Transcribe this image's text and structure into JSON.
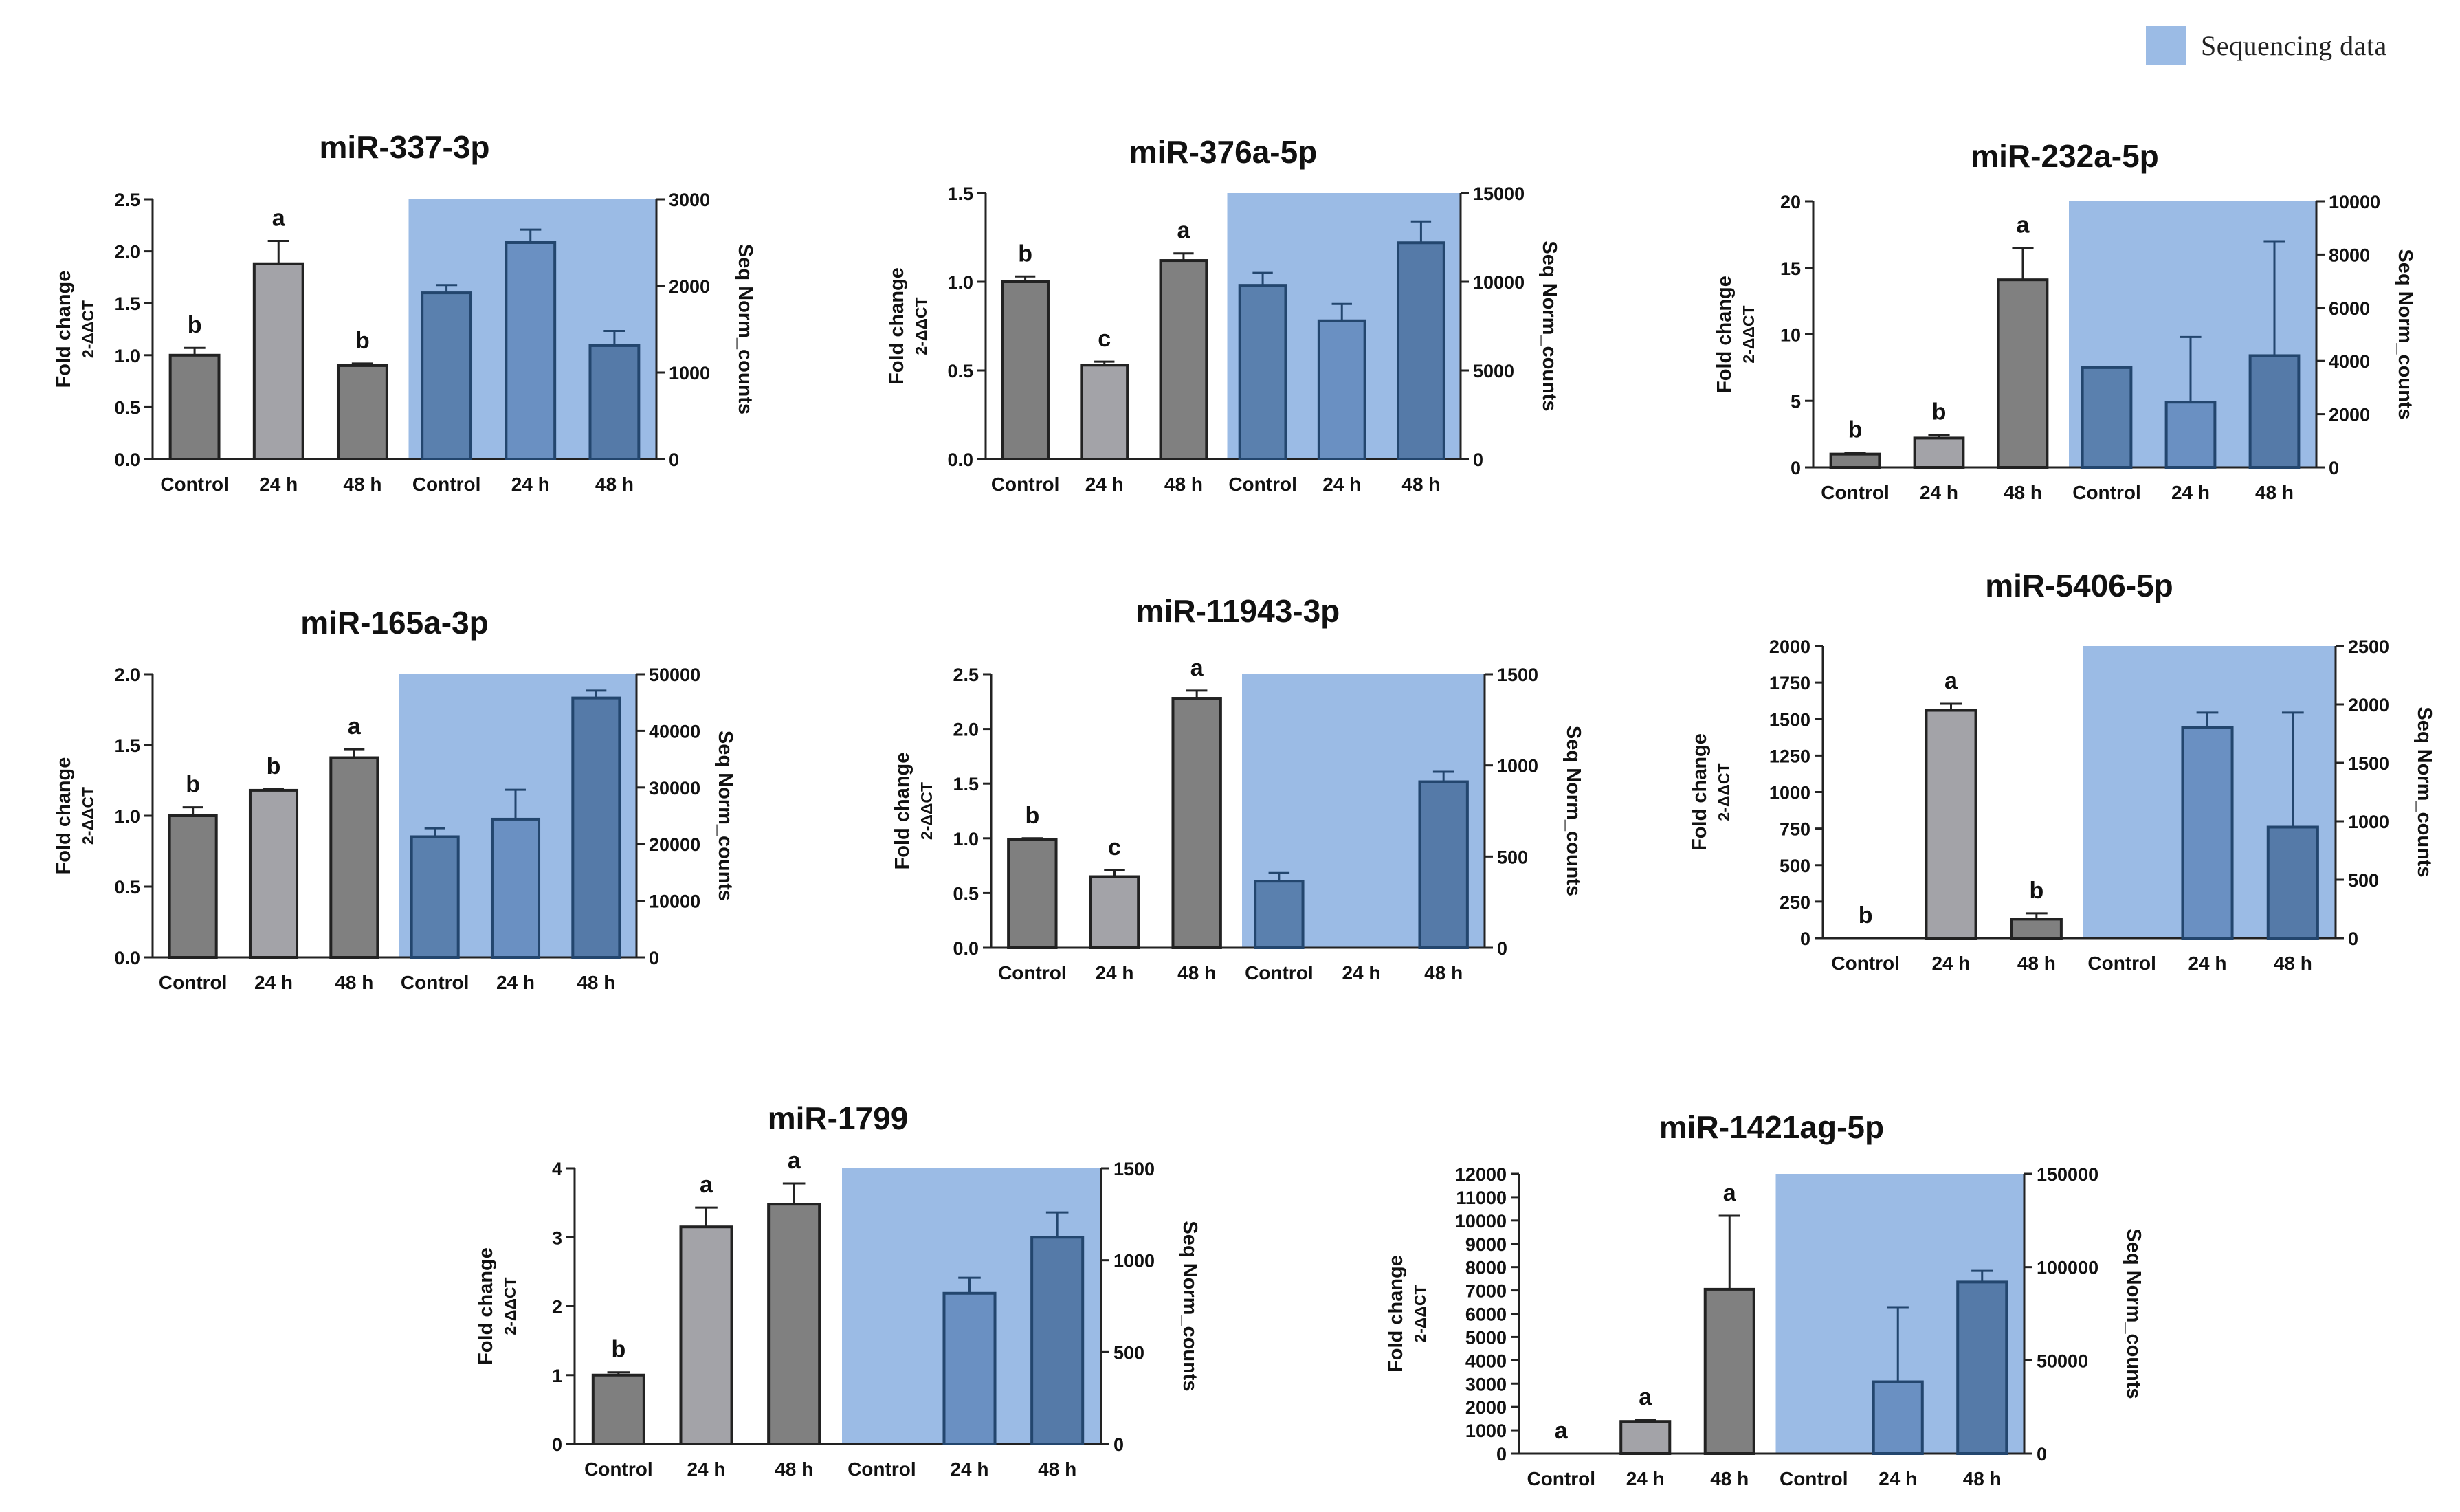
{
  "legend": {
    "label": "Sequencing data",
    "color": "#9bbbe5"
  },
  "colors": {
    "control_bar": "#7f7f7f",
    "h24_bar": "#a3a3a8",
    "h48_bar": "#808080",
    "seq_control": "#5a80ae",
    "seq_24": "#6a90c2",
    "seq_48": "#557aa8",
    "seq_background": "#9bbbe5",
    "bar_edge": "#222222",
    "seq_edge": "#23466e"
  },
  "chart_data": [
    {
      "type": "bar",
      "title": "miR-337-3p",
      "ylabel": "Fold change",
      "ylabel_formula": "2-ΔΔCT",
      "y2label": "Seq Norm_counts",
      "ylim": [
        0,
        2.5
      ],
      "yticks": [
        "0.0",
        "0.5",
        "1.0",
        "1.5",
        "2.0",
        "2.5"
      ],
      "y2lim": [
        0,
        3000
      ],
      "y2ticks": [
        "0",
        "1000",
        "2000",
        "3000"
      ],
      "categories": [
        "Control",
        "24 h",
        "48 h"
      ],
      "qpcr": {
        "values": [
          1.0,
          1.88,
          0.9
        ],
        "errors": [
          0.07,
          0.22,
          0.02
        ],
        "letters": [
          "b",
          "a",
          "b"
        ]
      },
      "seq": {
        "values": [
          1920,
          2500,
          1310
        ],
        "errors": [
          90,
          150,
          170
        ]
      }
    },
    {
      "type": "bar",
      "title": "miR-376a-5p",
      "ylabel": "Fold change",
      "ylabel_formula": "2-ΔΔCT",
      "y2label": "Seq Norm_counts",
      "ylim": [
        0,
        1.5
      ],
      "yticks": [
        "0.0",
        "0.5",
        "1.0",
        "1.5"
      ],
      "y2lim": [
        0,
        15000
      ],
      "y2ticks": [
        "0",
        "5000",
        "10000",
        "15000"
      ],
      "categories": [
        "Control",
        "24 h",
        "48 h"
      ],
      "qpcr": {
        "values": [
          1.0,
          0.53,
          1.12
        ],
        "errors": [
          0.03,
          0.02,
          0.04
        ],
        "letters": [
          "b",
          "c",
          "a"
        ]
      },
      "seq": {
        "values": [
          9800,
          7800,
          12200
        ],
        "errors": [
          700,
          950,
          1200
        ]
      }
    },
    {
      "type": "bar",
      "title": "miR-232a-5p",
      "ylabel": "Fold change",
      "ylabel_formula": "2-ΔΔCT",
      "y2label": "Seq Norm_counts",
      "ylim": [
        0,
        20
      ],
      "yticks": [
        "0",
        "5",
        "10",
        "15",
        "20"
      ],
      "y2lim": [
        0,
        10000
      ],
      "y2ticks": [
        "0",
        "2000",
        "4000",
        "6000",
        "8000",
        "10000"
      ],
      "categories": [
        "Control",
        "24 h",
        "48 h"
      ],
      "qpcr": {
        "values": [
          1.0,
          2.2,
          14.1
        ],
        "errors": [
          0.1,
          0.25,
          2.4
        ],
        "letters": [
          "b",
          "b",
          "a"
        ]
      },
      "seq": {
        "values": [
          3750,
          2450,
          4200
        ],
        "errors": [
          30,
          2450,
          4300
        ]
      }
    },
    {
      "type": "bar",
      "title": "miR-165a-3p",
      "ylabel": "Fold change",
      "ylabel_formula": "2-ΔΔCT",
      "y2label": "Seq Norm_counts",
      "ylim": [
        0,
        2.0
      ],
      "yticks": [
        "0.0",
        "0.5",
        "1.0",
        "1.5",
        "2.0"
      ],
      "y2lim": [
        0,
        50000
      ],
      "y2ticks": [
        "0",
        "10000",
        "20000",
        "30000",
        "40000",
        "50000"
      ],
      "categories": [
        "Control",
        "24 h",
        "48 h"
      ],
      "qpcr": {
        "values": [
          1.0,
          1.18,
          1.41
        ],
        "errors": [
          0.06,
          0.01,
          0.06
        ],
        "letters": [
          "b",
          "b",
          "a"
        ]
      },
      "seq": {
        "values": [
          21300,
          24400,
          45800
        ],
        "errors": [
          1500,
          5200,
          1300
        ]
      }
    },
    {
      "type": "bar",
      "title": "miR-11943-3p",
      "ylabel": "Fold change",
      "ylabel_formula": "2-ΔΔCT",
      "y2label": "Seq Norm_counts",
      "ylim": [
        0,
        2.5
      ],
      "yticks": [
        "0.0",
        "0.5",
        "1.0",
        "1.5",
        "2.0",
        "2.5"
      ],
      "y2lim": [
        0,
        1500
      ],
      "y2ticks": [
        "0",
        "500",
        "1000",
        "1500"
      ],
      "categories": [
        "Control",
        "24 h",
        "48 h"
      ],
      "qpcr": {
        "values": [
          0.99,
          0.65,
          2.28
        ],
        "errors": [
          0.01,
          0.06,
          0.07
        ],
        "letters": [
          "b",
          "c",
          "a"
        ]
      },
      "seq": {
        "values": [
          365,
          0,
          910
        ],
        "errors": [
          45,
          0,
          55
        ]
      }
    },
    {
      "type": "bar",
      "title": "miR-5406-5p",
      "ylabel": "Fold change",
      "ylabel_formula": "2-ΔΔCT",
      "y2label": "Seq Norm_counts",
      "ylim": [
        0,
        2000
      ],
      "yticks": [
        "0",
        "250",
        "500",
        "750",
        "1000",
        "1250",
        "1500",
        "1750",
        "2000"
      ],
      "y2lim": [
        0,
        2500
      ],
      "y2ticks": [
        "0",
        "500",
        "1000",
        "1500",
        "2000",
        "2500"
      ],
      "categories": [
        "Control",
        "24 h",
        "48 h"
      ],
      "qpcr": {
        "values": [
          0,
          1560,
          130
        ],
        "errors": [
          0,
          45,
          40
        ],
        "letters": [
          "b",
          "a",
          "b"
        ]
      },
      "seq": {
        "values": [
          0,
          1800,
          950
        ],
        "errors": [
          0,
          130,
          980
        ]
      }
    },
    {
      "type": "bar",
      "title": "miR-1799",
      "ylabel": "Fold change",
      "ylabel_formula": "2-ΔΔCT",
      "y2label": "Seq Norm_counts",
      "ylim": [
        0,
        4
      ],
      "yticks": [
        "0",
        "1",
        "2",
        "3",
        "4"
      ],
      "y2lim": [
        0,
        1500
      ],
      "y2ticks": [
        "0",
        "500",
        "1000",
        "1500"
      ],
      "categories": [
        "Control",
        "24 h",
        "48 h"
      ],
      "qpcr": {
        "values": [
          1.0,
          3.15,
          3.48
        ],
        "errors": [
          0.04,
          0.28,
          0.3
        ],
        "letters": [
          "b",
          "a",
          "a"
        ]
      },
      "seq": {
        "values": [
          0,
          820,
          1125
        ],
        "errors": [
          0,
          85,
          135
        ]
      }
    },
    {
      "type": "bar",
      "title": "miR-1421ag-5p",
      "ylabel": "Fold change",
      "ylabel_formula": "2-ΔΔCT",
      "y2label": "Seq Norm_counts",
      "ylim": [
        0,
        12000
      ],
      "yticks": [
        "0",
        "1000",
        "2000",
        "3000",
        "4000",
        "5000",
        "6000",
        "7000",
        "8000",
        "9000",
        "10000",
        "11000",
        "12000"
      ],
      "y2lim": [
        0,
        150000
      ],
      "y2ticks": [
        "0",
        "50000",
        "100000",
        "150000"
      ],
      "categories": [
        "Control",
        "24 h",
        "48 h"
      ],
      "qpcr": {
        "values": [
          0,
          1380,
          7050
        ],
        "errors": [
          0,
          60,
          3150
        ],
        "letters": [
          "a",
          "a",
          "a"
        ]
      },
      "seq": {
        "values": [
          0,
          38500,
          92000
        ],
        "errors": [
          0,
          40000,
          6000
        ]
      }
    }
  ]
}
